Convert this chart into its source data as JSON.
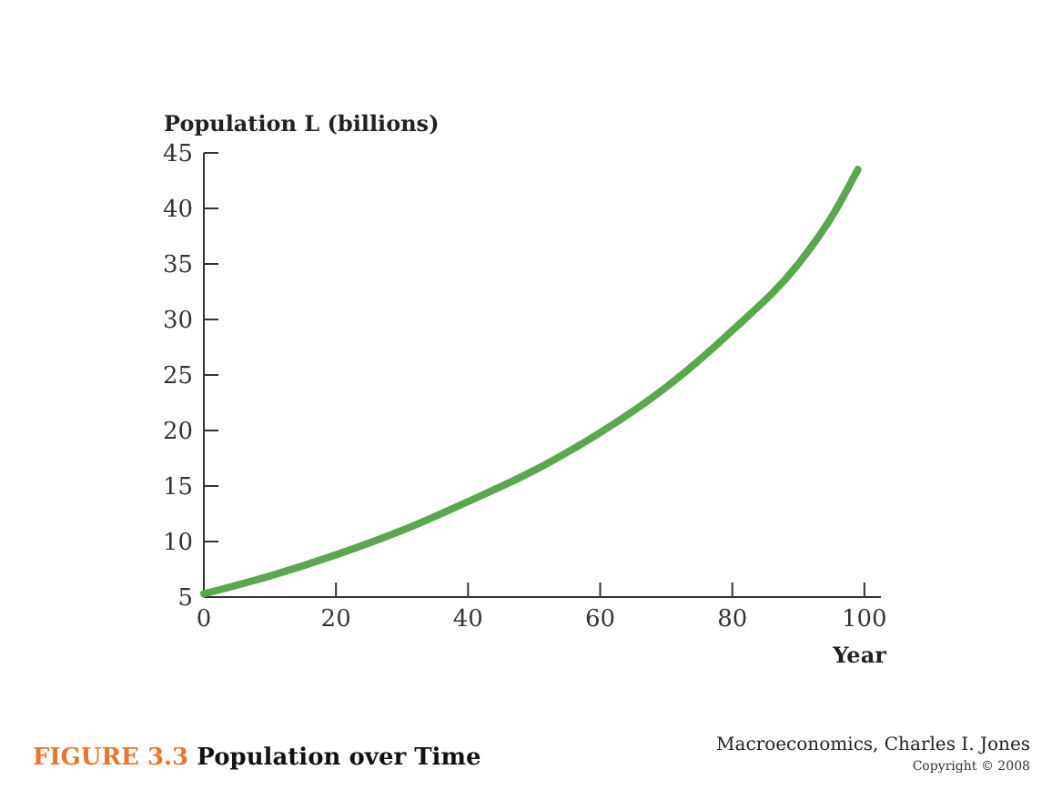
{
  "chart_data": {
    "type": "line",
    "title": "Population over Time",
    "xlabel": "Year",
    "ylabel": "Population L (billions)",
    "annotations": [
      "FIGURE 3.3",
      "Macroeconomics, Charles I. Jones",
      "Copyright © 2008"
    ],
    "x": [
      0,
      10,
      20,
      30,
      40,
      50,
      60,
      70,
      80,
      90,
      95,
      99
    ],
    "series": [
      {
        "color": "#5aa84e",
        "values": [
          5.3,
          6.9,
          8.8,
          11.0,
          13.6,
          16.4,
          19.8,
          23.9,
          29.0,
          35.0,
          39.2,
          43.5
        ]
      }
    ],
    "xlim": [
      0,
      102.5
    ],
    "xticks": [
      0,
      20,
      40,
      60,
      80,
      100
    ],
    "ylim": [
      5,
      45
    ],
    "yticks": [
      5,
      10,
      15,
      20,
      25,
      30,
      35,
      40,
      45
    ],
    "grid": false,
    "marker": "none",
    "line_style": "solid"
  }
}
